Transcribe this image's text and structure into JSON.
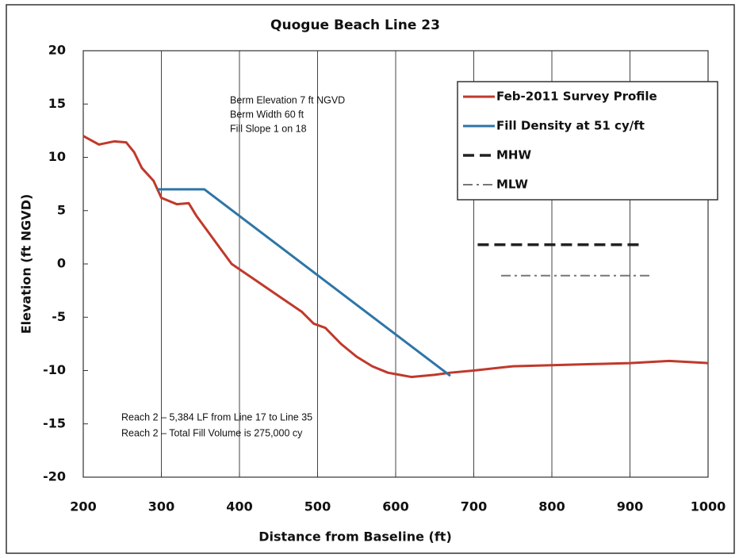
{
  "chart_data": {
    "type": "line",
    "title": "Quogue Beach Line 23",
    "xlabel": "Distance from Baseline (ft)",
    "ylabel": "Elevation (ft NGVD)",
    "xlim": [
      200,
      1000
    ],
    "xticks": [
      200,
      300,
      400,
      500,
      600,
      700,
      800,
      900,
      1000
    ],
    "ylim": [
      -20,
      20
    ],
    "yticks": [
      -20,
      -15,
      -10,
      -5,
      0,
      5,
      10,
      15,
      20
    ],
    "grid": "vertical",
    "annotations": [
      [
        "Berm Elevation 7 ft NGVD",
        "Berm Width 60 ft",
        "Fill Slope 1 on 18"
      ],
      [
        "Reach 2 – 5,384 LF from Line 17 to Line 35",
        "Reach 2 – Total Fill Volume is 275,000 cy"
      ]
    ],
    "series": [
      {
        "name": "Feb-2011 Survey Profile",
        "color": "#c0392b",
        "style": "solid",
        "x": [
          200,
          220,
          240,
          255,
          265,
          275,
          290,
          300,
          320,
          335,
          345,
          360,
          375,
          390,
          420,
          450,
          480,
          495,
          510,
          530,
          550,
          570,
          590,
          620,
          650,
          670,
          700,
          750,
          800,
          850,
          900,
          950,
          1000
        ],
        "values": [
          12,
          11.2,
          11.5,
          11.4,
          10.5,
          9,
          7.8,
          6.2,
          5.6,
          5.7,
          4.5,
          3,
          1.5,
          0,
          -1.5,
          -3,
          -4.5,
          -5.6,
          -6,
          -7.5,
          -8.7,
          -9.6,
          -10.2,
          -10.6,
          -10.4,
          -10.2,
          -10,
          -9.6,
          -9.5,
          -9.4,
          -9.3,
          -9.1,
          -9.3
        ]
      },
      {
        "name": "Fill Density at 51 cy/ft",
        "color": "#2e75a6",
        "style": "solid",
        "x": [
          295,
          355,
          670
        ],
        "values": [
          7,
          7,
          -10.5
        ]
      },
      {
        "name": "MHW",
        "color": "#222222",
        "style": "dashed",
        "x": [
          705,
          915
        ],
        "values": [
          1.8,
          1.8
        ]
      },
      {
        "name": "MLW",
        "color": "#777777",
        "style": "dashdot",
        "x": [
          735,
          925
        ],
        "values": [
          -1.1,
          -1.1
        ]
      }
    ]
  }
}
